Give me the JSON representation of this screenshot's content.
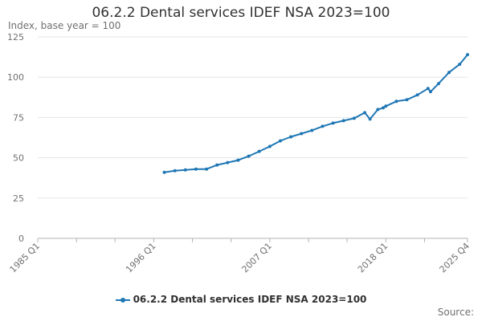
{
  "chart_data": {
    "type": "line",
    "title": "06.2.2 Dental services IDEF NSA 2023=100",
    "subtitle": "Index, base year = 100",
    "xlabel": "",
    "ylabel": "",
    "ylim": [
      0,
      125
    ],
    "yticks": [
      0,
      25,
      50,
      75,
      100,
      125
    ],
    "xlim": [
      "1985 Q1",
      "2025 Q4"
    ],
    "xticks": [
      "1985 Q1",
      "1996 Q1",
      "2007 Q1",
      "2018 Q1",
      "2025 Q4"
    ],
    "grid": true,
    "legend_position": "bottom",
    "color": "#1f77b4",
    "series": [
      {
        "name": "06.2.2 Dental services IDEF NSA 2023=100",
        "x": [
          "1997 Q1",
          "1998 Q1",
          "1999 Q1",
          "2000 Q1",
          "2001 Q1",
          "2002 Q1",
          "2003 Q1",
          "2004 Q1",
          "2005 Q1",
          "2006 Q1",
          "2007 Q1",
          "2008 Q1",
          "2009 Q1",
          "2010 Q1",
          "2011 Q1",
          "2012 Q1",
          "2013 Q1",
          "2014 Q1",
          "2015 Q1",
          "2016 Q1",
          "2016 Q3",
          "2017 Q2",
          "2017 Q4",
          "2018 Q1",
          "2019 Q1",
          "2020 Q1",
          "2021 Q1",
          "2022 Q1",
          "2022 Q2",
          "2023 Q1",
          "2024 Q1",
          "2025 Q1",
          "2025 Q4"
        ],
        "values": [
          41,
          42,
          42.5,
          43,
          43,
          45.5,
          47,
          48.5,
          51,
          54,
          57,
          60.5,
          63,
          65,
          67,
          69.5,
          71.5,
          73,
          74.5,
          78,
          74,
          80,
          81,
          82,
          85,
          86,
          89,
          93,
          91,
          96,
          103,
          108,
          114
        ]
      }
    ],
    "source_label": "Source:"
  }
}
